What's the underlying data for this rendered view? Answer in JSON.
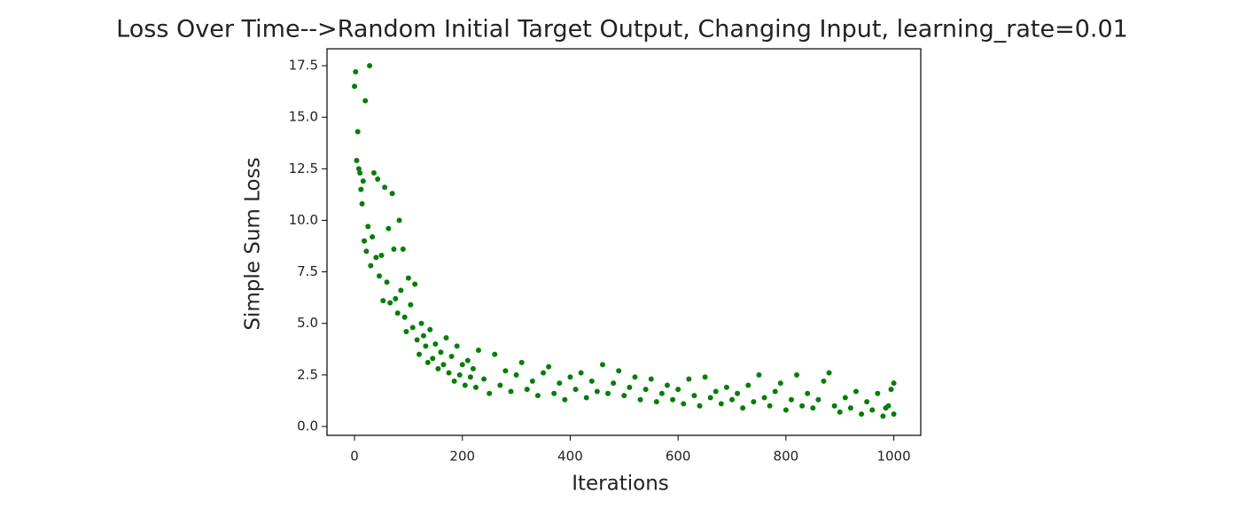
{
  "chart_data": {
    "type": "scatter",
    "title": "Loss Over Time-->Random Initial Target Output, Changing Input, learning_rate=0.01",
    "x_label": "Iterations",
    "y_label": "Simple Sum Loss",
    "color": "#008000",
    "grid": false,
    "xlim": [
      -51,
      1050
    ],
    "xticks": [
      0,
      200,
      400,
      600,
      800,
      1000
    ],
    "ylim": [
      -0.43,
      18.32
    ],
    "yticks": [
      {
        "value": 0,
        "label": "0.0"
      },
      {
        "value": 2.5,
        "label": "2.5"
      },
      {
        "value": 5,
        "label": "5.0"
      },
      {
        "value": 7.5,
        "label": "7.5"
      },
      {
        "value": 10,
        "label": "10.0"
      },
      {
        "value": 12.5,
        "label": "12.5"
      },
      {
        "value": 15,
        "label": "15.0"
      },
      {
        "value": 17.5,
        "label": "17.5"
      }
    ],
    "x": [
      0,
      2,
      4,
      6,
      8,
      10,
      12,
      14,
      16,
      18,
      20,
      22,
      25,
      28,
      30,
      33,
      36,
      40,
      43,
      46,
      50,
      53,
      56,
      60,
      63,
      66,
      70,
      73,
      76,
      80,
      83,
      86,
      90,
      93,
      96,
      100,
      104,
      108,
      112,
      116,
      120,
      124,
      128,
      132,
      136,
      140,
      145,
      150,
      155,
      160,
      165,
      170,
      175,
      180,
      185,
      190,
      195,
      200,
      205,
      210,
      215,
      220,
      225,
      230,
      240,
      250,
      260,
      270,
      280,
      290,
      300,
      310,
      320,
      330,
      340,
      350,
      360,
      370,
      380,
      390,
      400,
      410,
      420,
      430,
      440,
      450,
      460,
      470,
      480,
      490,
      500,
      510,
      520,
      530,
      540,
      550,
      560,
      570,
      580,
      590,
      600,
      610,
      620,
      630,
      640,
      650,
      660,
      670,
      680,
      690,
      700,
      710,
      720,
      730,
      740,
      750,
      760,
      770,
      780,
      790,
      800,
      810,
      820,
      830,
      840,
      850,
      860,
      870,
      880,
      890,
      900,
      910,
      920,
      930,
      940,
      950,
      960,
      970,
      980,
      985,
      990,
      995,
      1000,
      1000
    ],
    "values": [
      16.5,
      17.2,
      12.9,
      14.3,
      12.5,
      12.3,
      11.5,
      10.8,
      11.9,
      9.0,
      15.8,
      8.5,
      9.7,
      17.5,
      7.8,
      9.2,
      12.3,
      8.2,
      12.0,
      7.3,
      8.3,
      6.1,
      11.6,
      7.0,
      9.6,
      6.0,
      11.3,
      8.6,
      6.2,
      5.5,
      10.0,
      6.6,
      8.6,
      5.3,
      4.6,
      7.2,
      5.9,
      4.8,
      6.9,
      4.2,
      3.5,
      5.0,
      4.4,
      3.9,
      3.1,
      4.7,
      3.3,
      4.0,
      2.8,
      3.6,
      3.0,
      4.3,
      2.6,
      3.4,
      2.2,
      3.9,
      2.5,
      3.0,
      2.0,
      3.2,
      2.4,
      2.8,
      1.9,
      3.7,
      2.3,
      1.6,
      3.5,
      2.0,
      2.7,
      1.7,
      2.5,
      3.1,
      1.8,
      2.2,
      1.5,
      2.6,
      2.9,
      1.6,
      2.1,
      1.3,
      2.4,
      1.8,
      2.6,
      1.4,
      2.2,
      1.7,
      3.0,
      1.6,
      2.1,
      2.7,
      1.5,
      1.9,
      2.4,
      1.3,
      1.8,
      2.3,
      1.2,
      1.6,
      2.0,
      1.3,
      1.8,
      1.1,
      2.3,
      1.5,
      1.0,
      2.4,
      1.4,
      1.7,
      1.1,
      1.9,
      1.3,
      1.6,
      0.9,
      2.0,
      1.2,
      2.5,
      1.4,
      1.0,
      1.7,
      2.1,
      0.8,
      1.3,
      2.5,
      1.0,
      1.6,
      0.9,
      1.3,
      2.2,
      2.6,
      1.0,
      0.7,
      1.4,
      0.9,
      1.7,
      0.6,
      1.2,
      0.8,
      1.6,
      0.5,
      0.9,
      1.0,
      1.8,
      2.1,
      0.6
    ]
  }
}
